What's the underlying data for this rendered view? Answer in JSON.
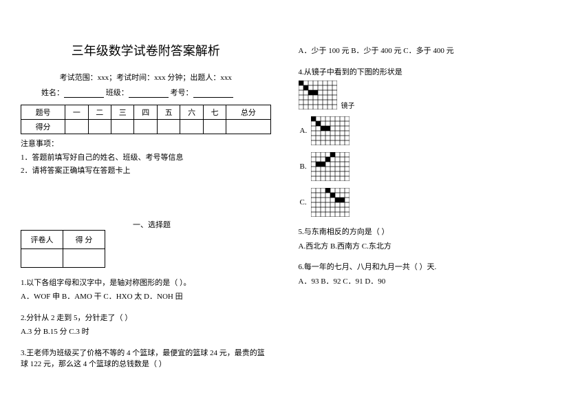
{
  "title": "三年级数学试卷附答案解析",
  "meta_line": "考试范围：xxx；考试时间：xxx 分钟；出题人：xxx",
  "name_prefix": "姓名：",
  "class_prefix": "班级：",
  "id_prefix": "考号：",
  "score_table": {
    "row1": [
      "题号",
      "一",
      "二",
      "三",
      "四",
      "五",
      "六",
      "七",
      "总分"
    ],
    "row2_first": "得分"
  },
  "notes_header": "注意事项：",
  "notes": [
    "1．答题前填写好自己的姓名、班级、考号等信息",
    "2．请将答案正确填写在答题卡上"
  ],
  "grader_table": {
    "c1": "评卷人",
    "c2": "得  分"
  },
  "section1_label": "一、选择题",
  "q1": {
    "stem": "1.以下各组字母和汉字中，是轴对称图形的是（  ）。",
    "opts": "A．WOF 申    B．AMO 干    C．HXO 太    D．NOH 田"
  },
  "q2": {
    "stem": "2.分针从 2 走到 5，分针走了（  ）",
    "opts": "A.3 分     B.15 分     C.3 时"
  },
  "q3": {
    "stem": "3.王老师为班级买了价格不等的 4 个篮球，最便宜的篮球 24 元，最贵的篮球 122 元，那么这 4 个篮球的总钱数是（  ）",
    "opts": "A．少于 100 元    B．少于 400 元    C．多于 400 元"
  },
  "q4": {
    "stem": "4.从镜子中看到的下图的形状是",
    "mirror": "镜子",
    "labelA": "A.",
    "labelB": "B.",
    "labelC": "C."
  },
  "q5": {
    "stem": "5.与东南相反的方向是（ ）",
    "opts": "A.西北方            B.西南方            C.东北方"
  },
  "q6": {
    "stem": "6.每一年的七月、八月和九月一共（  ）天.",
    "opts": "A．93    B．92    C．91    D．90"
  },
  "grid": {
    "cols": 8,
    "rows": 6,
    "cell": 7,
    "stroke": "#000000",
    "fill": "#000000",
    "original": [
      [
        0,
        0
      ],
      [
        1,
        1
      ],
      [
        2,
        2
      ],
      [
        3,
        2
      ]
    ],
    "optA": [
      [
        0,
        0
      ],
      [
        1,
        1
      ],
      [
        2,
        2
      ],
      [
        3,
        2
      ]
    ],
    "optB": [
      [
        4,
        0
      ],
      [
        3,
        1
      ],
      [
        2,
        2
      ],
      [
        1,
        2
      ]
    ],
    "optC": [
      [
        3,
        0
      ],
      [
        4,
        1
      ],
      [
        5,
        2
      ],
      [
        6,
        2
      ]
    ]
  }
}
